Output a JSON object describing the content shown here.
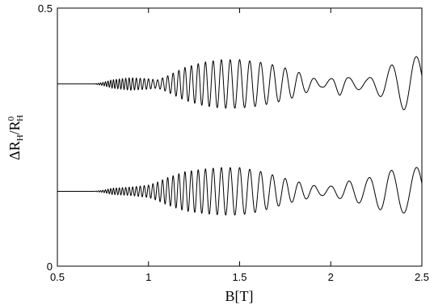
{
  "chart_data": {
    "type": "line",
    "title": "",
    "xlabel": "B[T]",
    "ylabel": {
      "main": "ΔR",
      "sub1": "H",
      "slash": "/R",
      "sup": "0",
      "sub2": "H"
    },
    "xlim": [
      0.5,
      2.5
    ],
    "ylim": [
      0,
      0.5
    ],
    "xticks": [
      "0.5",
      "1",
      "1.5",
      "2",
      "2.5"
    ],
    "yticks": [
      "0",
      "0.5"
    ],
    "grid": false,
    "legend": "none",
    "line_color": "#000000",
    "series": [
      {
        "baseline": 0.353,
        "envelope": {
          "B": [
            0.5,
            0.7,
            0.75,
            0.8,
            0.9,
            1.0,
            1.05,
            1.1,
            1.2,
            1.3,
            1.4,
            1.5,
            1.6,
            1.7,
            1.8,
            1.9,
            1.95,
            2.0,
            2.05,
            2.1,
            2.2,
            2.3,
            2.4,
            2.45,
            2.5
          ],
          "amplitude": [
            0.0,
            0.0,
            0.003,
            0.008,
            0.012,
            0.01,
            0.008,
            0.015,
            0.032,
            0.042,
            0.047,
            0.047,
            0.043,
            0.036,
            0.026,
            0.012,
            0.006,
            0.01,
            0.022,
            0.012,
            0.01,
            0.03,
            0.05,
            0.055,
            0.05
          ]
        }
      },
      {
        "baseline": 0.145,
        "envelope": {
          "B": [
            0.5,
            0.7,
            0.75,
            0.8,
            0.9,
            1.0,
            1.05,
            1.1,
            1.2,
            1.3,
            1.4,
            1.5,
            1.6,
            1.7,
            1.8,
            1.9,
            1.95,
            2.0,
            2.05,
            2.1,
            2.2,
            2.3,
            2.4,
            2.45,
            2.5
          ],
          "amplitude": [
            0.0,
            0.0,
            0.002,
            0.006,
            0.008,
            0.012,
            0.018,
            0.026,
            0.038,
            0.043,
            0.046,
            0.046,
            0.04,
            0.03,
            0.02,
            0.012,
            0.008,
            0.01,
            0.014,
            0.02,
            0.025,
            0.04,
            0.042,
            0.045,
            0.048
          ]
        }
      }
    ],
    "oscillation_frequency_T": 42
  }
}
